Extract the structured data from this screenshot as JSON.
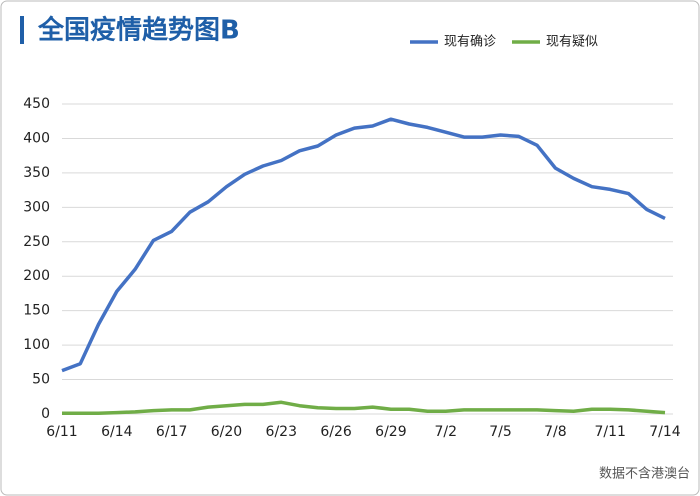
{
  "chart_data": {
    "type": "line",
    "title": "全国疫情趋势图B",
    "annotation": "数据不含港澳台",
    "categories": [
      "6/11",
      null,
      null,
      "6/14",
      null,
      null,
      "6/17",
      null,
      null,
      "6/20",
      null,
      null,
      "6/23",
      null,
      null,
      "6/26",
      null,
      null,
      "6/29",
      null,
      null,
      "7/2",
      null,
      null,
      "7/5",
      null,
      null,
      "7/8",
      null,
      null,
      "7/11",
      null,
      null,
      "7/14"
    ],
    "series": [
      {
        "name": "现有确诊",
        "color": "#4472c4",
        "values": [
          63,
          73,
          130,
          178,
          210,
          252,
          265,
          293,
          308,
          330,
          348,
          360,
          368,
          382,
          389,
          405,
          415,
          418,
          428,
          421,
          416,
          409,
          402,
          402,
          405,
          403,
          390,
          357,
          342,
          330,
          326,
          320,
          297,
          284
        ]
      },
      {
        "name": "现有疑似",
        "color": "#70ad47",
        "values": [
          1,
          1,
          1,
          2,
          3,
          5,
          6,
          6,
          10,
          12,
          14,
          14,
          17,
          12,
          9,
          8,
          8,
          10,
          7,
          7,
          4,
          4,
          6,
          6,
          6,
          6,
          6,
          5,
          4,
          7,
          7,
          6,
          4,
          2
        ]
      }
    ],
    "ylim": [
      0,
      450
    ],
    "yticks": [
      0,
      50,
      100,
      150,
      200,
      250,
      300,
      350,
      400,
      450
    ],
    "grid": true,
    "legend": "top-right"
  }
}
